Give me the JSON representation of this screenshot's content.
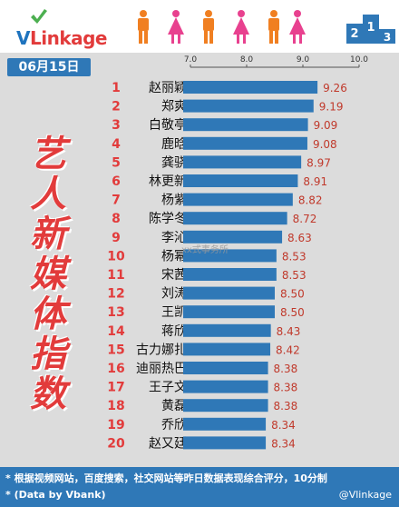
{
  "header": {
    "logo_v": "V",
    "logo_rest": "Linkage",
    "podium_labels": [
      "2",
      "1",
      "3"
    ]
  },
  "date_label": "06月15日",
  "side_title": [
    "艺",
    "人",
    "新",
    "媒",
    "体",
    "指",
    "数"
  ],
  "watermark": "xx式事务所",
  "footer": {
    "note1": "* 根据视频网站，百度搜索，社交网站等昨日数据表现综合评分，10分制",
    "note2": "* (Data by Vbank)",
    "handle": "@Vlinkage"
  },
  "colors": {
    "bar": "#2f78b7",
    "rank": "#e23b3b",
    "value": "#c0392b",
    "background": "#dcdcdc",
    "people_orange": "#f07f21",
    "people_pink": "#e8418f"
  },
  "chart_data": {
    "type": "bar",
    "orientation": "horizontal",
    "xlim": [
      7.0,
      10.0
    ],
    "xticks": [
      "7.0",
      "8.0",
      "9.0",
      "10.0"
    ],
    "ranks": [
      "1",
      "2",
      "3",
      "4",
      "5",
      "6",
      "7",
      "8",
      "9",
      "10",
      "11",
      "12",
      "13",
      "14",
      "15",
      "16",
      "17",
      "18",
      "19",
      "20"
    ],
    "categories": [
      "赵丽颖",
      "郑爽",
      "白敬亭",
      "鹿晗",
      "龚骁",
      "林更新",
      "杨紫",
      "陈学冬",
      "李沁",
      "杨幂",
      "宋茜",
      "刘涛",
      "王凯",
      "蒋欣",
      "古力娜扎",
      "迪丽热巴",
      "王子文",
      "黄磊",
      "乔欣",
      "赵又廷"
    ],
    "values": [
      9.26,
      9.19,
      9.09,
      9.08,
      8.97,
      8.91,
      8.82,
      8.72,
      8.63,
      8.53,
      8.53,
      8.5,
      8.5,
      8.43,
      8.42,
      8.38,
      8.38,
      8.38,
      8.34,
      8.34
    ],
    "value_labels": [
      "9.26",
      "9.19",
      "9.09",
      "9.08",
      "8.97",
      "8.91",
      "8.82",
      "8.72",
      "8.63",
      "8.53",
      "8.53",
      "8.50",
      "8.50",
      "8.43",
      "8.42",
      "8.38",
      "8.38",
      "8.38",
      "8.34",
      "8.34"
    ],
    "grid": false,
    "legend": "none"
  }
}
